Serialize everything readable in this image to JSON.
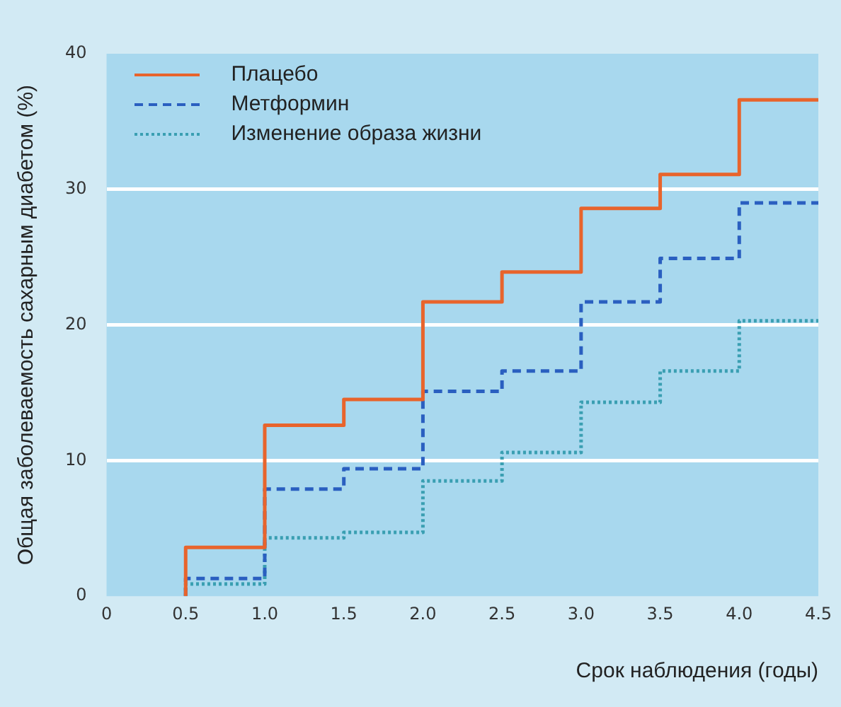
{
  "chart_data": {
    "type": "step",
    "xlabel": "Срок наблюдения (годы)",
    "ylabel": "Общая заболеваемость сахарным диабетом (%)",
    "x": [
      0.5,
      0.5,
      1.0,
      1.5,
      2.0,
      2.5,
      3.0,
      3.5,
      4.0,
      4.5
    ],
    "series": [
      {
        "name": "Плацебо",
        "color": "#e8642c",
        "line_style": "solid",
        "values": [
          0,
          3.6,
          12.6,
          14.5,
          21.7,
          23.9,
          28.6,
          31.1,
          36.6,
          36.6
        ]
      },
      {
        "name": "Метформин",
        "color": "#2a5fc0",
        "line_style": "dashed",
        "values": [
          0,
          1.3,
          7.9,
          9.4,
          15.1,
          16.6,
          21.7,
          24.9,
          29.0,
          29.0
        ]
      },
      {
        "name": "Изменение образа жизни",
        "color": "#3a9fb2",
        "line_style": "dotted",
        "values": [
          0,
          0.9,
          4.3,
          4.7,
          8.5,
          10.6,
          14.3,
          16.6,
          20.3,
          20.3
        ]
      }
    ],
    "xlim": [
      0,
      4.5
    ],
    "xticks": [
      0,
      {
        "value": 0.5,
        "label": "0.5"
      },
      {
        "value": 1,
        "label": "1.0"
      },
      {
        "value": 1.5,
        "label": "1.5"
      },
      {
        "value": 2,
        "label": "2.0"
      },
      {
        "value": 2.5,
        "label": "2.5"
      },
      {
        "value": 3,
        "label": "3.0"
      },
      {
        "value": 3.5,
        "label": "3.5"
      },
      {
        "value": 4,
        "label": "4.0"
      },
      {
        "value": 4.5,
        "label": "4.5"
      }
    ],
    "ylim": [
      0,
      40
    ],
    "yticks": [
      0,
      10,
      20,
      30,
      40
    ],
    "grid": "y",
    "legend": "top left",
    "marker": "none"
  }
}
